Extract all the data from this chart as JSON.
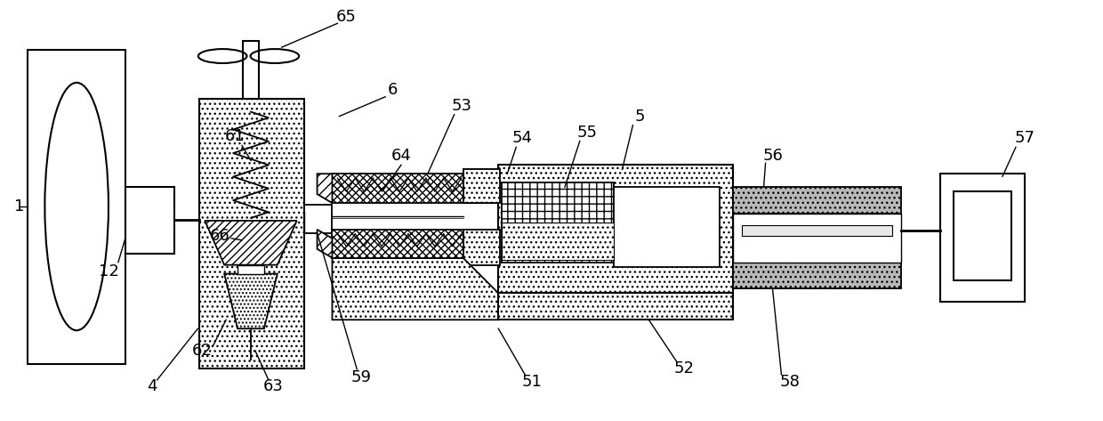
{
  "fig_width": 12.4,
  "fig_height": 4.73,
  "dpi": 100,
  "bg_color": "#ffffff",
  "lc": "#000000",
  "dot_color": "#d8d8d8",
  "gray_color": "#b0b0b0",
  "label_fs": 13
}
